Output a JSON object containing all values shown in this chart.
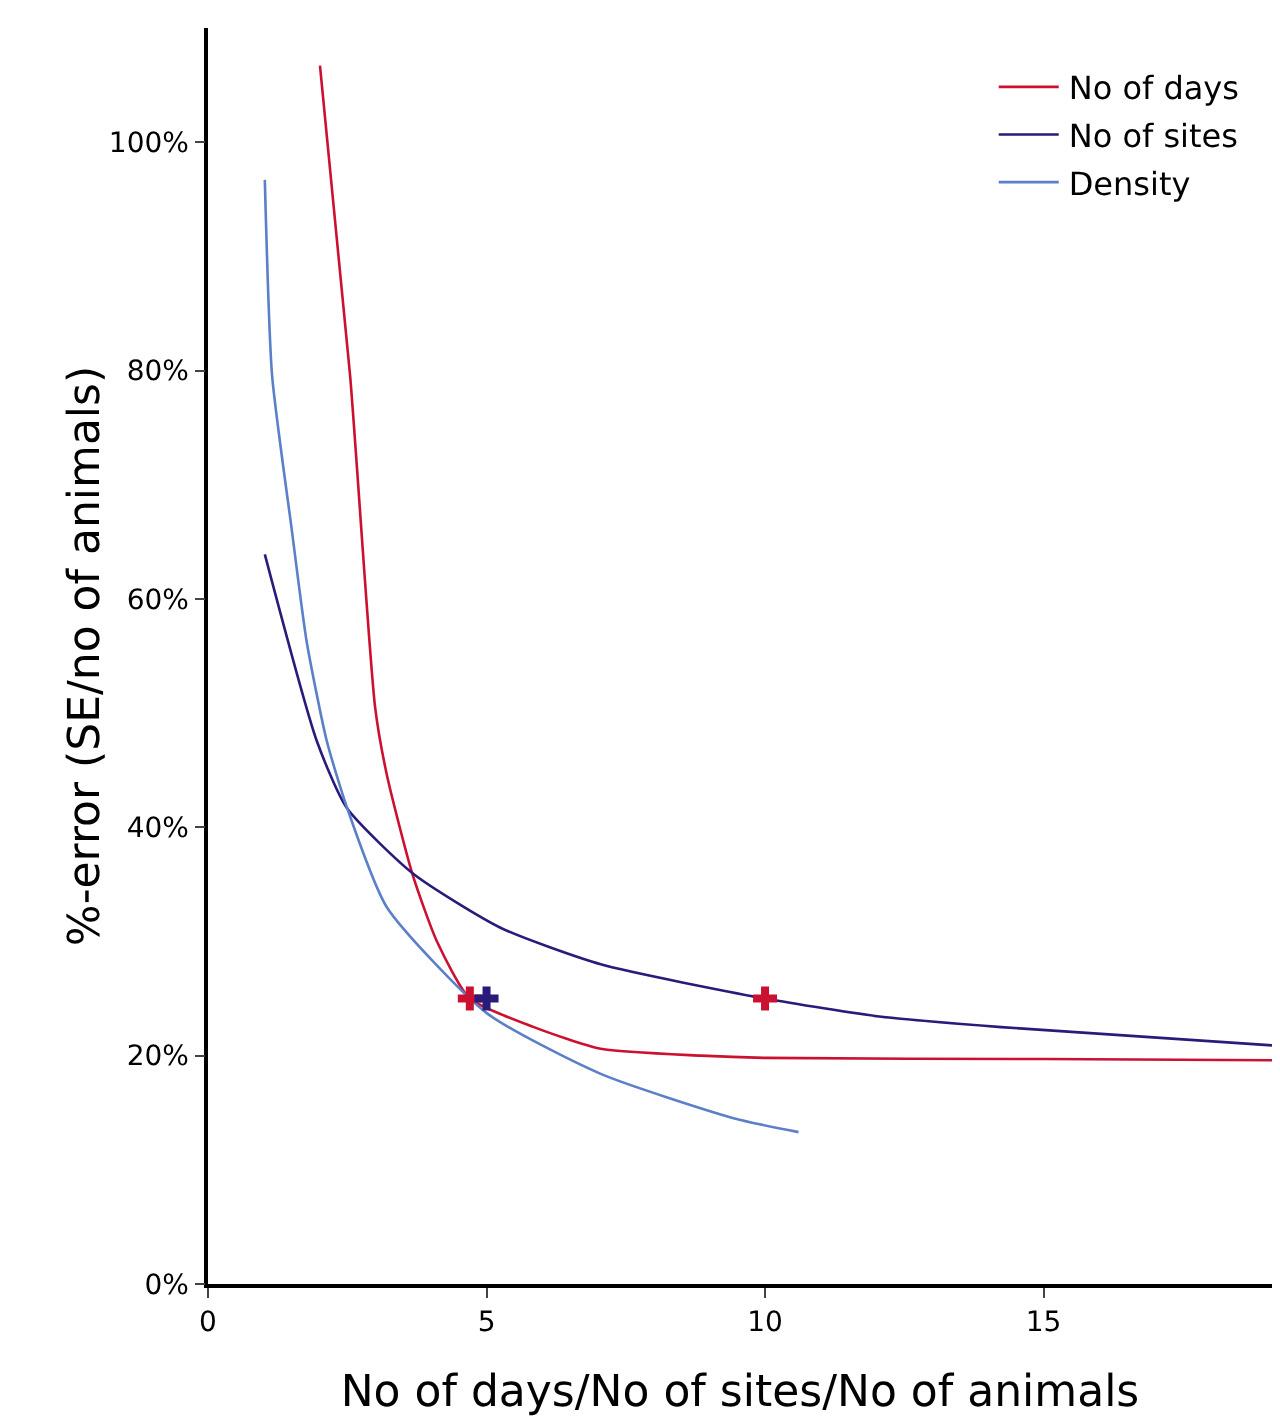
{
  "chart_data": {
    "type": "line",
    "xlabel": "No of days/No of sites/No of animals",
    "ylabel": "%-error (SE/no of animals)",
    "xlim": [
      0,
      19.1
    ],
    "xticks": [
      0,
      5,
      10,
      15
    ],
    "ylim": [
      0,
      110
    ],
    "yticks": [
      {
        "value": 0,
        "label": "0%"
      },
      {
        "value": 20,
        "label": "20%"
      },
      {
        "value": 40,
        "label": "40%"
      },
      {
        "value": 60,
        "label": "60%"
      },
      {
        "value": 80,
        "label": "80%"
      },
      {
        "value": 100,
        "label": "100%"
      }
    ],
    "grid": false,
    "legend": "top right",
    "marker": "none",
    "line_style": "solid",
    "series": [
      {
        "name": "No of days",
        "color": "#cc1030",
        "x": [
          2.01,
          2.55,
          3.0,
          3.21,
          3.67,
          4.11,
          4.7,
          5.85,
          7.05,
          8.85,
          10,
          15,
          19.1
        ],
        "values": [
          106.7,
          79.6,
          50.5,
          44.6,
          35.9,
          30,
          25,
          22.5,
          20.6,
          20.0,
          19.8,
          19.7,
          19.6
        ]
      },
      {
        "name": "No of sites",
        "color": "#2a1a7a",
        "x": [
          1.02,
          1.95,
          2.49,
          3.69,
          5.25,
          7.05,
          10,
          12.09,
          14.24,
          19.1
        ],
        "values": [
          63.9,
          47.6,
          41.7,
          35.9,
          31.2,
          28.0,
          25,
          23.4,
          22.5,
          20.9
        ]
      },
      {
        "name": "Density",
        "color": "#5b7fc8",
        "x": [
          1.02,
          1.15,
          1.5,
          1.77,
          2.13,
          2.49,
          3.21,
          5.01,
          7.05,
          9.45,
          10.6
        ],
        "values": [
          96.7,
          79.6,
          66.2,
          56.3,
          47.6,
          41.8,
          33.0,
          23.7,
          18.4,
          14.5,
          13.3
        ]
      },
      {
        "type": "scatter",
        "marker": "cross",
        "color": "#cc1030",
        "x": [
          4.7,
          10
        ],
        "values": [
          25,
          25
        ]
      },
      {
        "type": "scatter",
        "marker": "cross",
        "color": "#2a1a7a",
        "x": [
          5
        ],
        "values": [
          25
        ]
      }
    ]
  }
}
